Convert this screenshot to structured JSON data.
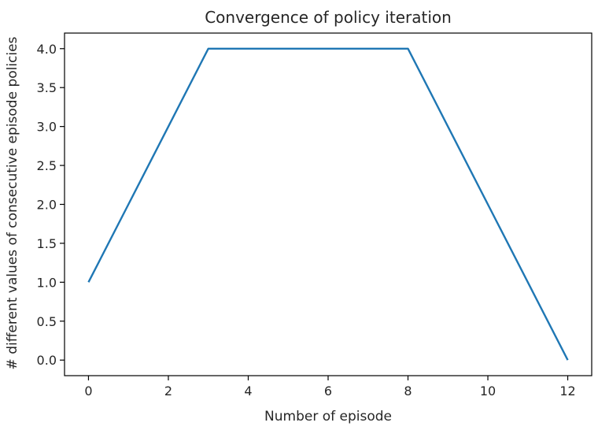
{
  "chart_data": {
    "type": "line",
    "title": "Convergence of policy iteration",
    "xlabel": "Number of episode",
    "ylabel": "# different values of consecutive episode policies",
    "xlim": [
      -0.6,
      12.6
    ],
    "ylim": [
      -0.2,
      4.2
    ],
    "xticks": [
      0,
      2,
      4,
      6,
      8,
      10,
      12
    ],
    "xtick_labels": [
      "0",
      "2",
      "4",
      "6",
      "8",
      "10",
      "12"
    ],
    "yticks": [
      0.0,
      0.5,
      1.0,
      1.5,
      2.0,
      2.5,
      3.0,
      3.5,
      4.0
    ],
    "ytick_labels": [
      "0.0",
      "0.5",
      "1.0",
      "1.5",
      "2.0",
      "2.5",
      "3.0",
      "3.5",
      "4.0"
    ],
    "grid": false,
    "legend": "none",
    "series": [
      {
        "color": "#1f77b4",
        "x": [
          0,
          1,
          2,
          3,
          4,
          5,
          6,
          7,
          8,
          9,
          10,
          11,
          12
        ],
        "y": [
          1,
          2,
          3,
          4,
          4,
          4,
          4,
          4,
          4,
          3,
          2,
          1,
          0
        ]
      }
    ]
  }
}
